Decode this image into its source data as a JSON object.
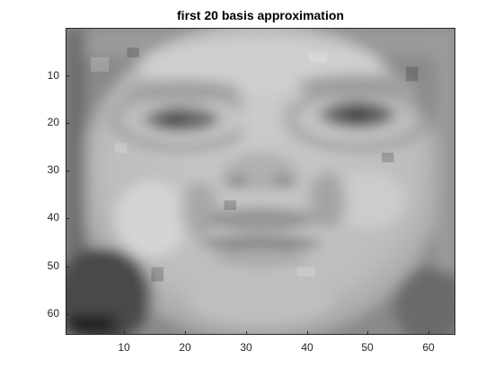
{
  "figure": {
    "title": "first 20 basis approximation"
  },
  "image": {
    "description_icon": "grayscale-face-image",
    "colormap": "gray",
    "grid_cols": 64,
    "grid_rows": 64
  },
  "axes": {
    "x": {
      "ticks": [
        10,
        20,
        30,
        40,
        50,
        60
      ],
      "range": [
        0.5,
        64.5
      ]
    },
    "y": {
      "ticks": [
        10,
        20,
        30,
        40,
        50,
        60
      ],
      "range": [
        0.5,
        64.5
      ],
      "direction": "reverse"
    }
  }
}
